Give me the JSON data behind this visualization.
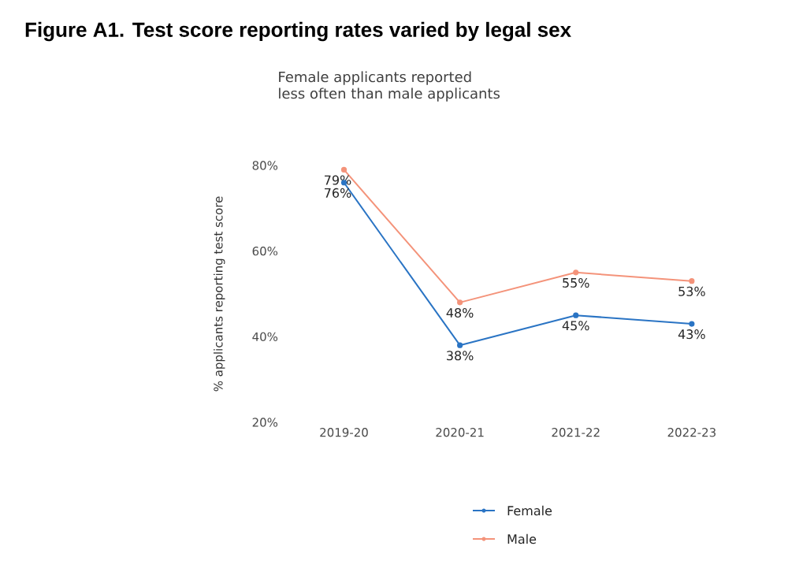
{
  "chart_data": {
    "type": "line",
    "title": "Figure A1. Test score reporting rates varied by legal sex",
    "subtitle": "Female applicants reported\nless often than male applicants",
    "ylabel": "% applicants reporting test score",
    "categories": [
      "2019-20",
      "2020-21",
      "2021-22",
      "2022-23"
    ],
    "series": [
      {
        "name": "Female",
        "color": "#2a74c4",
        "values": [
          76,
          38,
          45,
          43
        ],
        "value_labels": [
          "76%",
          "38%",
          "45%",
          "43%"
        ]
      },
      {
        "name": "Male",
        "color": "#f4937a",
        "values": [
          79,
          48,
          55,
          53
        ],
        "value_labels": [
          "79%",
          "48%",
          "55%",
          "53%"
        ]
      }
    ],
    "ylim": [
      20,
      80
    ],
    "yticks": [
      {
        "value": 20,
        "label": "20%"
      },
      {
        "value": 40,
        "label": "40%"
      },
      {
        "value": 60,
        "label": "60%"
      },
      {
        "value": 80,
        "label": "80%"
      }
    ],
    "marker": "circle",
    "legend": "bottom"
  }
}
